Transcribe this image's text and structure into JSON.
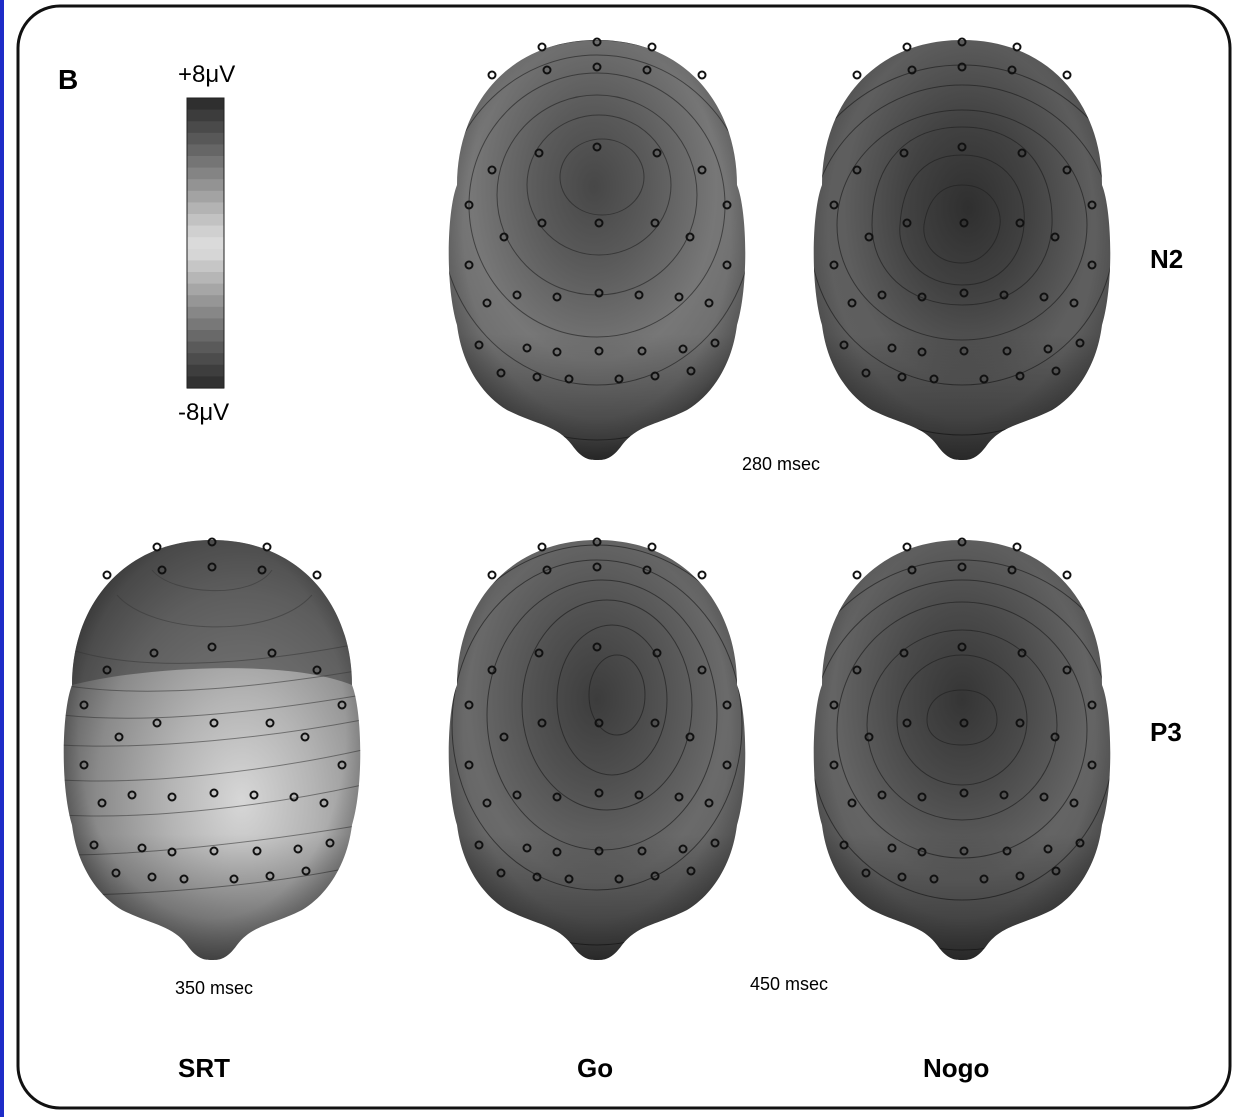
{
  "panel_label": "B",
  "colorbar": {
    "max_label": "+8μV",
    "min_label": "-8μV",
    "levels": [
      "#2f2f2f",
      "#3c3c3c",
      "#4a4a4a",
      "#585858",
      "#666666",
      "#757575",
      "#848484",
      "#939393",
      "#a3a3a3",
      "#b3b3b3",
      "#c2c2c2",
      "#d0d0d0",
      "#dadada",
      "#d6d6d6",
      "#c6c6c6",
      "#b6b6b6",
      "#a6a6a6",
      "#969696",
      "#878787",
      "#787878",
      "#696969",
      "#5a5a5a",
      "#4c4c4c",
      "#3e3e3e",
      "#313131"
    ]
  },
  "rows": {
    "n2": "N2",
    "p3": "P3"
  },
  "columns": {
    "srt": "SRT",
    "go": "Go",
    "nogo": "Nogo"
  },
  "latencies": {
    "n2": "280 msec",
    "srt": "350 msec",
    "p3": "450 msec"
  },
  "maps": [
    {
      "id": "n2-go",
      "row": "n2",
      "column": "go"
    },
    {
      "id": "n2-nogo",
      "row": "n2",
      "column": "nogo"
    },
    {
      "id": "p3-srt",
      "row": "p3",
      "column": "srt"
    },
    {
      "id": "p3-go",
      "row": "p3",
      "column": "go"
    },
    {
      "id": "p3-nogo",
      "row": "p3",
      "column": "nogo"
    }
  ]
}
